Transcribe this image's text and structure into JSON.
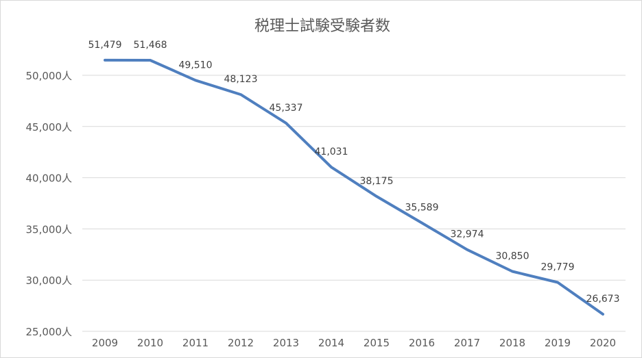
{
  "chart_data": {
    "type": "line",
    "title": "税理士試験受験者数",
    "xlabel": "",
    "ylabel": "",
    "categories": [
      "2009",
      "2010",
      "2011",
      "2012",
      "2013",
      "2014",
      "2015",
      "2016",
      "2017",
      "2018",
      "2019",
      "2020"
    ],
    "values": [
      51479,
      51468,
      49510,
      48123,
      45337,
      41031,
      38175,
      35589,
      32974,
      30850,
      29779,
      26673
    ],
    "data_labels": [
      "51,479",
      "51,468",
      "49,510",
      "48,123",
      "45,337",
      "41,031",
      "38,175",
      "35,589",
      "32,974",
      "30,850",
      "29,779",
      "26,673"
    ],
    "ylim": [
      25000,
      50000
    ],
    "yticks": [
      25000,
      30000,
      35000,
      40000,
      45000,
      50000
    ],
    "ytick_labels": [
      "25,000人",
      "30,000人",
      "35,000人",
      "40,000人",
      "45,000人",
      "50,000人"
    ],
    "grid": true,
    "legend": "none",
    "colors": {
      "line": "#4f7fbf",
      "grid": "#d9d9d9",
      "text": "#595959"
    }
  }
}
